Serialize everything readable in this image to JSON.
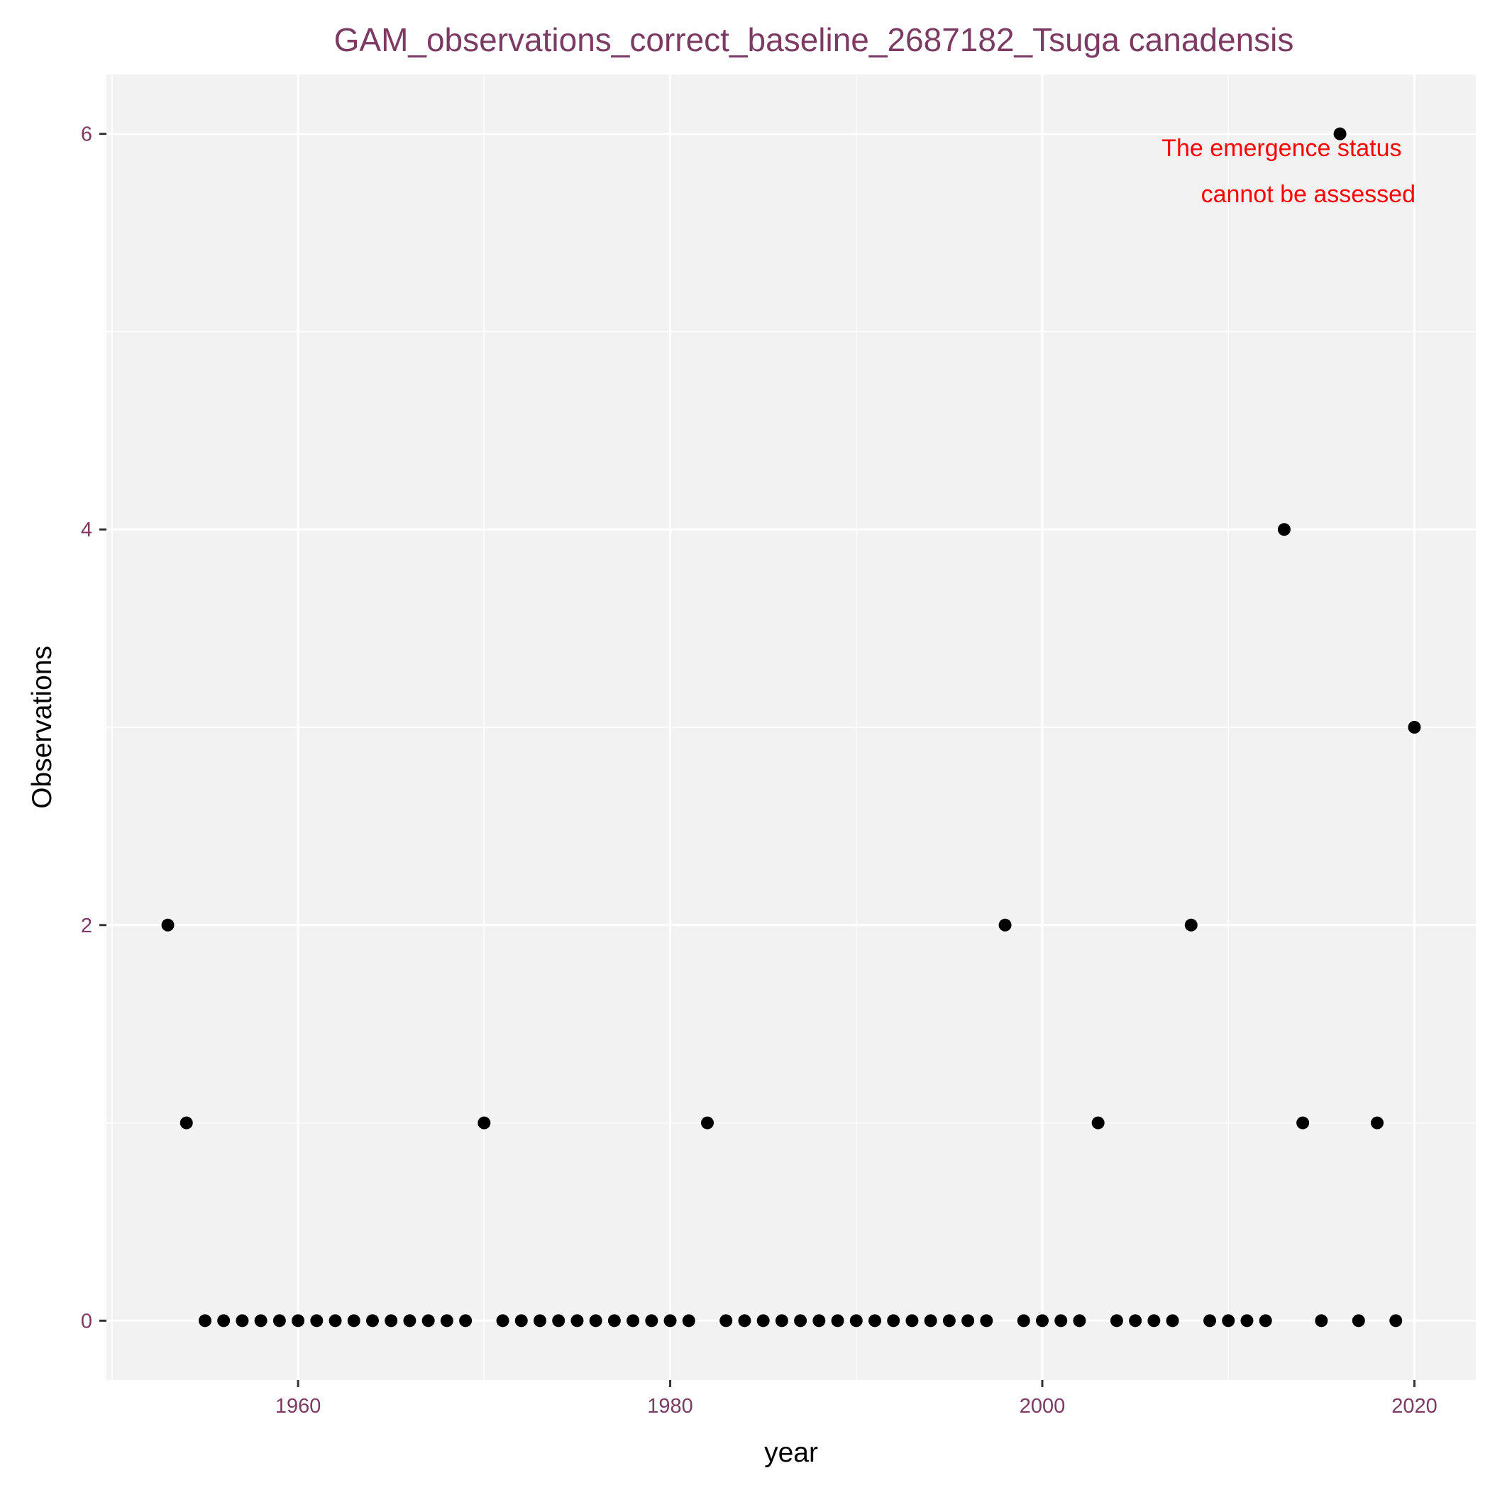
{
  "chart_data": {
    "type": "scatter",
    "title": "GAM_observations_correct_baseline_2687182_Tsuga canadensis",
    "xlabel": "year",
    "ylabel": "Observations",
    "xlim": [
      1949.7,
      2023.3
    ],
    "ylim": [
      -0.3,
      6.3
    ],
    "x_ticks": [
      1960,
      1980,
      2000,
      2020
    ],
    "y_ticks": [
      0,
      2,
      4,
      6
    ],
    "grid": true,
    "annotation": [
      "The emergence status",
      "cannot be assessed"
    ],
    "colors": {
      "panel": "#f2f2f2",
      "grid": "#ffffff",
      "points": "#000000",
      "title": "#7b3b63",
      "annotation": "#ff0000"
    },
    "points": [
      {
        "x": 1953,
        "y": 2
      },
      {
        "x": 1954,
        "y": 1
      },
      {
        "x": 1955,
        "y": 0
      },
      {
        "x": 1956,
        "y": 0
      },
      {
        "x": 1957,
        "y": 0
      },
      {
        "x": 1958,
        "y": 0
      },
      {
        "x": 1959,
        "y": 0
      },
      {
        "x": 1960,
        "y": 0
      },
      {
        "x": 1961,
        "y": 0
      },
      {
        "x": 1962,
        "y": 0
      },
      {
        "x": 1963,
        "y": 0
      },
      {
        "x": 1964,
        "y": 0
      },
      {
        "x": 1965,
        "y": 0
      },
      {
        "x": 1966,
        "y": 0
      },
      {
        "x": 1967,
        "y": 0
      },
      {
        "x": 1968,
        "y": 0
      },
      {
        "x": 1969,
        "y": 0
      },
      {
        "x": 1970,
        "y": 1
      },
      {
        "x": 1971,
        "y": 0
      },
      {
        "x": 1972,
        "y": 0
      },
      {
        "x": 1973,
        "y": 0
      },
      {
        "x": 1974,
        "y": 0
      },
      {
        "x": 1975,
        "y": 0
      },
      {
        "x": 1976,
        "y": 0
      },
      {
        "x": 1977,
        "y": 0
      },
      {
        "x": 1978,
        "y": 0
      },
      {
        "x": 1979,
        "y": 0
      },
      {
        "x": 1980,
        "y": 0
      },
      {
        "x": 1981,
        "y": 0
      },
      {
        "x": 1982,
        "y": 1
      },
      {
        "x": 1983,
        "y": 0
      },
      {
        "x": 1984,
        "y": 0
      },
      {
        "x": 1985,
        "y": 0
      },
      {
        "x": 1986,
        "y": 0
      },
      {
        "x": 1987,
        "y": 0
      },
      {
        "x": 1988,
        "y": 0
      },
      {
        "x": 1989,
        "y": 0
      },
      {
        "x": 1990,
        "y": 0
      },
      {
        "x": 1991,
        "y": 0
      },
      {
        "x": 1992,
        "y": 0
      },
      {
        "x": 1993,
        "y": 0
      },
      {
        "x": 1994,
        "y": 0
      },
      {
        "x": 1995,
        "y": 0
      },
      {
        "x": 1996,
        "y": 0
      },
      {
        "x": 1997,
        "y": 0
      },
      {
        "x": 1998,
        "y": 2
      },
      {
        "x": 1999,
        "y": 0
      },
      {
        "x": 2000,
        "y": 0
      },
      {
        "x": 2001,
        "y": 0
      },
      {
        "x": 2002,
        "y": 0
      },
      {
        "x": 2003,
        "y": 1
      },
      {
        "x": 2004,
        "y": 0
      },
      {
        "x": 2005,
        "y": 0
      },
      {
        "x": 2006,
        "y": 0
      },
      {
        "x": 2007,
        "y": 0
      },
      {
        "x": 2008,
        "y": 2
      },
      {
        "x": 2009,
        "y": 0
      },
      {
        "x": 2010,
        "y": 0
      },
      {
        "x": 2011,
        "y": 0
      },
      {
        "x": 2012,
        "y": 0
      },
      {
        "x": 2013,
        "y": 4
      },
      {
        "x": 2014,
        "y": 1
      },
      {
        "x": 2015,
        "y": 0
      },
      {
        "x": 2016,
        "y": 6
      },
      {
        "x": 2017,
        "y": 0
      },
      {
        "x": 2018,
        "y": 1
      },
      {
        "x": 2019,
        "y": 0
      },
      {
        "x": 2020,
        "y": 3
      }
    ]
  }
}
